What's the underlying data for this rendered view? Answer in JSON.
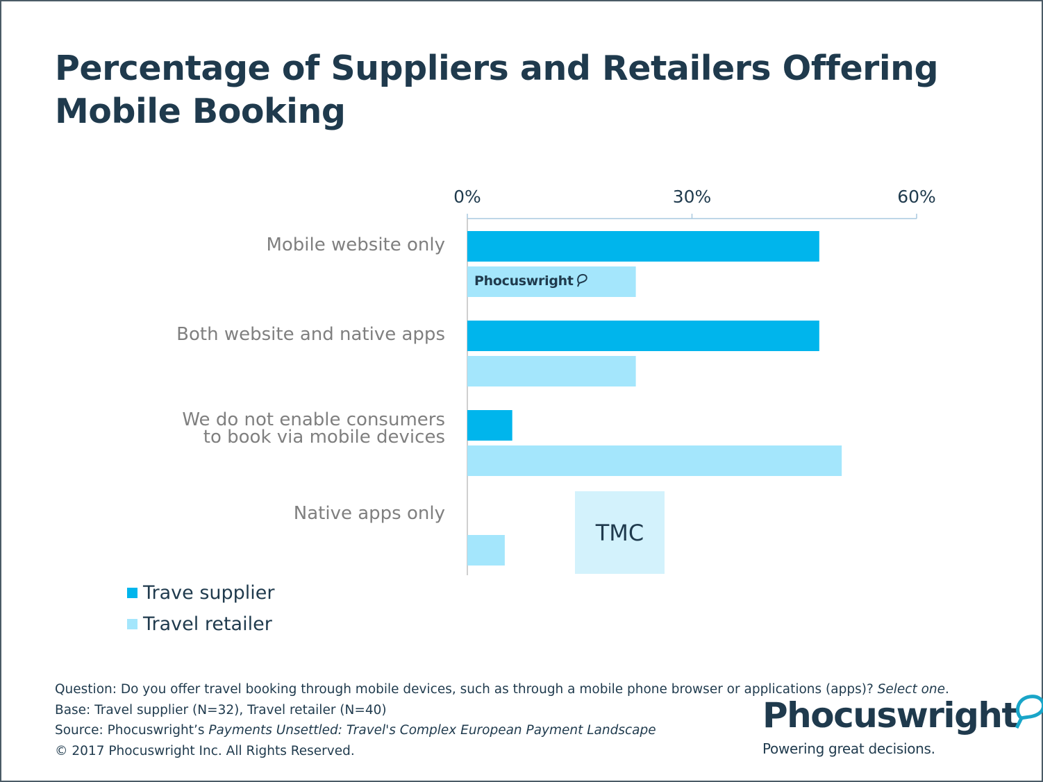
{
  "title": "Percentage of Suppliers and Retailers Offering Mobile Booking",
  "colors": {
    "supplier": "#00b5ec",
    "retailer": "#a4e6fc",
    "text": "#1f3a4d",
    "label": "#7f7f7f",
    "axis": "#a9c8df"
  },
  "chart_data": {
    "type": "bar",
    "orientation": "horizontal",
    "title": "Percentage of Suppliers and Retailers Offering Mobile Booking",
    "categories": [
      [
        "Mobile website only"
      ],
      [
        "Both website and native apps"
      ],
      [
        "We do not enable consumers",
        "to book via mobile devices"
      ],
      [
        "Native apps only"
      ]
    ],
    "series": [
      {
        "name": "Trave supplier",
        "values": [
          47,
          47,
          6,
          0
        ]
      },
      {
        "name": "Travel retailer",
        "values": [
          22.5,
          22.5,
          50,
          5
        ]
      }
    ],
    "xlim": [
      0,
      60
    ],
    "xticks": [
      0,
      30,
      60
    ],
    "xtick_labels": [
      "0%",
      "30%",
      "60%"
    ],
    "legend_position": "bottom-left"
  },
  "legend": [
    {
      "label": "Trave supplier"
    },
    {
      "label": "Travel retailer"
    }
  ],
  "overlay": {
    "tmc": "TMC",
    "bar_watermark": "Phocuswright"
  },
  "notes": {
    "question": "Question: Do you offer travel booking through mobile devices, such as through a mobile phone browser or applications (apps)? ",
    "question_italic": "Select one",
    "question_end": ".",
    "base": "Base: Travel supplier (N=32), Travel retailer (N=40)",
    "source": "Source: Phocuswright’s ",
    "source_italic": "Payments Unsettled: Travel's Complex European Payment Landscape",
    "copyright": "© 2017 Phocuswright Inc. All Rights Reserved."
  },
  "logo": {
    "word": "Phocuswright",
    "tagline": "Powering great decisions."
  }
}
